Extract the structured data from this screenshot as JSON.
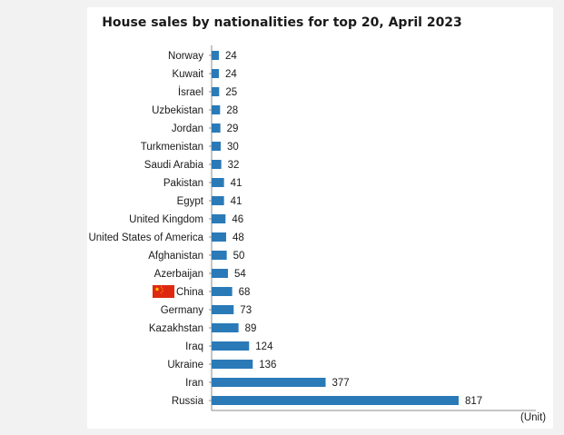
{
  "chart_data": {
    "type": "bar",
    "orientation": "horizontal",
    "title": "House sales by nationalities for top 20, April 2023",
    "unit_label": "(Unit)",
    "categories": [
      "Norway",
      "Kuwait",
      "İsrael",
      "Uzbekistan",
      "Jordan",
      "Turkmenistan",
      "Saudi Arabia",
      "Pakistan",
      "Egypt",
      "United Kingdom",
      "United States of America",
      "Afghanistan",
      "Azerbaijan",
      "China",
      "Germany",
      "Kazakhstan",
      "Iraq",
      "Ukraine",
      "Iran",
      "Russia"
    ],
    "values": [
      24,
      24,
      25,
      28,
      29,
      30,
      32,
      41,
      41,
      46,
      48,
      50,
      54,
      68,
      73,
      89,
      124,
      136,
      377,
      817
    ],
    "bar_color": "#2a7ab8",
    "highlight": {
      "category": "China",
      "icon": "china-flag-icon",
      "flag_color": "#de2910",
      "star_color": "#ffde00"
    },
    "grid": false,
    "legend": "none"
  }
}
